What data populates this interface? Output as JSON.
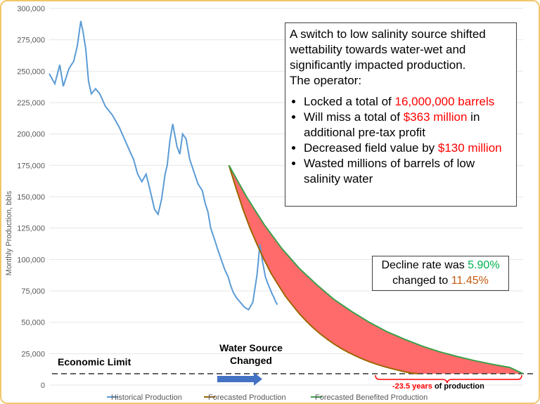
{
  "colors": {
    "historical": "#5b9bd5",
    "forecasted": "#9c6500",
    "benefited": "#3aa04a",
    "gap_fill": "#ff6b6b",
    "frame": "#f2c66d",
    "highlight_red": "#ff0000"
  },
  "infobox": {
    "intro": "A switch to low salinity source shifted wettability towards water-wet and significantly impacted production.",
    "operator": "The operator:",
    "bullets": [
      {
        "pre": "Locked a total of ",
        "hl": "16,000,000 barrels",
        "post": ""
      },
      {
        "pre": "Will miss a total of ",
        "hl": "$363 million",
        "post": " in additional pre-tax profit"
      },
      {
        "pre": "Decreased field value by ",
        "hl": "$130 million",
        "post": ""
      },
      {
        "pre": "Wasted millions of barrels of low salinity water",
        "hl": "",
        "post": ""
      }
    ]
  },
  "decline": {
    "line1_pre": "Decline rate was ",
    "old_rate": "5.90%",
    "new_rate": "11.45%",
    "line2_pre": "changed to "
  },
  "annotations": {
    "economic_limit": "Economic Limit",
    "water_source": "Water Source Changed",
    "years_value": "-23.5 years",
    "years_suffix": " of production"
  },
  "chart_data": {
    "type": "line",
    "ylabel": "Monthly Production, bbls",
    "ylim": [
      0,
      300000
    ],
    "yticks": [
      0,
      25000,
      50000,
      75000,
      100000,
      125000,
      150000,
      175000,
      200000,
      225000,
      250000,
      275000,
      300000
    ],
    "ytick_labels": [
      "0",
      "25,000",
      "50,000",
      "75,000",
      "100,000",
      "125,000",
      "150,000",
      "175,000",
      "200,000",
      "225,000",
      "250,000",
      "275,000",
      "300,000"
    ],
    "xlim": [
      0,
      675
    ],
    "economic_limit": 9000,
    "legend_position": "bottom",
    "series": [
      {
        "name": "Historical Production",
        "x": [
          0,
          8,
          15,
          20,
          28,
          35,
          40,
          45,
          48,
          52,
          56,
          60,
          66,
          72,
          80,
          90,
          100,
          108,
          115,
          120,
          126,
          132,
          138,
          145,
          150,
          155,
          160,
          165,
          168,
          172,
          176,
          182,
          186,
          190,
          195,
          200,
          206,
          212,
          218,
          222,
          226,
          230,
          236,
          240,
          245,
          250,
          255,
          258,
          262,
          266,
          272,
          278,
          284,
          290,
          296,
          300,
          304,
          308,
          312,
          315,
          318,
          320,
          322,
          325
        ],
        "values": [
          248000,
          240000,
          255000,
          238000,
          252000,
          258000,
          270000,
          290000,
          282000,
          268000,
          242000,
          232000,
          236000,
          232000,
          222000,
          215000,
          205000,
          195000,
          186000,
          180000,
          168000,
          162000,
          168000,
          152000,
          140000,
          136000,
          148000,
          168000,
          175000,
          195000,
          208000,
          190000,
          184000,
          200000,
          196000,
          180000,
          170000,
          160000,
          155000,
          145000,
          138000,
          125000,
          115000,
          108000,
          100000,
          92000,
          86000,
          80000,
          74000,
          70000,
          66000,
          62000,
          60000,
          66000,
          88000,
          112000,
          98000,
          86000,
          80000,
          76000,
          72000,
          70000,
          67000,
          64000
        ]
      },
      {
        "name": "Forecasted Production",
        "x": [
          256,
          266,
          276,
          286,
          296,
          306,
          316,
          326,
          336,
          346,
          356,
          366,
          376,
          386,
          396,
          406,
          416,
          426,
          436,
          446,
          456,
          466,
          476,
          486,
          496,
          506,
          516,
          526
        ],
        "values": [
          175000,
          157000,
          140000,
          125000,
          112000,
          100000,
          89000,
          80000,
          71000,
          64000,
          57000,
          51000,
          45600,
          40800,
          36500,
          32600,
          29100,
          26000,
          23300,
          20800,
          18600,
          16600,
          14900,
          13300,
          11900,
          10600,
          9500,
          9000
        ]
      },
      {
        "name": "Forecasted Benefited Production",
        "x": [
          256,
          281,
          306,
          331,
          356,
          381,
          406,
          431,
          456,
          481,
          506,
          531,
          556,
          581,
          606,
          631,
          656,
          675
        ],
        "values": [
          175000,
          150000,
          128000,
          109000,
          93000,
          80000,
          68000,
          58500,
          50000,
          42500,
          36500,
          31000,
          26500,
          22700,
          19400,
          16500,
          14000,
          9000
        ]
      }
    ]
  }
}
